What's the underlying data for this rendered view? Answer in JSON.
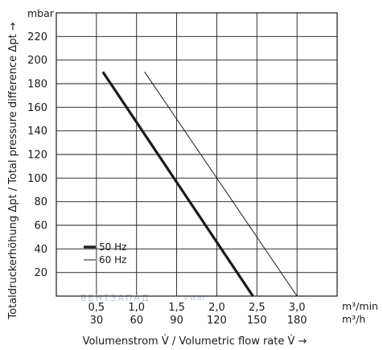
{
  "chart_data": {
    "type": "line",
    "y_unit": "mbar",
    "ylim": [
      0,
      240
    ],
    "y_ticks": [
      "20",
      "40",
      "60",
      "80",
      "100",
      "120",
      "140",
      "160",
      "180",
      "200",
      "220"
    ],
    "xlim": [
      0,
      3.5
    ],
    "x_ticks_top": [
      "0,5",
      "1,0",
      "1,5",
      "2,0",
      "2,5",
      "3,0"
    ],
    "x_ticks_bottom": [
      "30",
      "60",
      "90",
      "120",
      "150",
      "180"
    ],
    "x_unit_top": "m³/min",
    "x_unit_bottom": "m³/h",
    "xlabel": "Volumenstrom V̇ / Volumetric flow rate V̇ →",
    "ylabel": "Totaldruckerhöhung Δpt / Total pressure difference Δpt →",
    "series": [
      {
        "name": "50 Hz",
        "color": "#1a1a1a",
        "x": [
          0.58,
          2.45
        ],
        "y": [
          190,
          0
        ]
      },
      {
        "name": "60 Hz",
        "color": "#1a1a1a",
        "x": [
          1.1,
          3.0
        ],
        "y": [
          190,
          0
        ]
      }
    ],
    "legend": "bottom-left",
    "grid": true
  },
  "watermark": {
    "text": "ВЕНТЗАПАД",
    "url": "V-W.BY"
  }
}
